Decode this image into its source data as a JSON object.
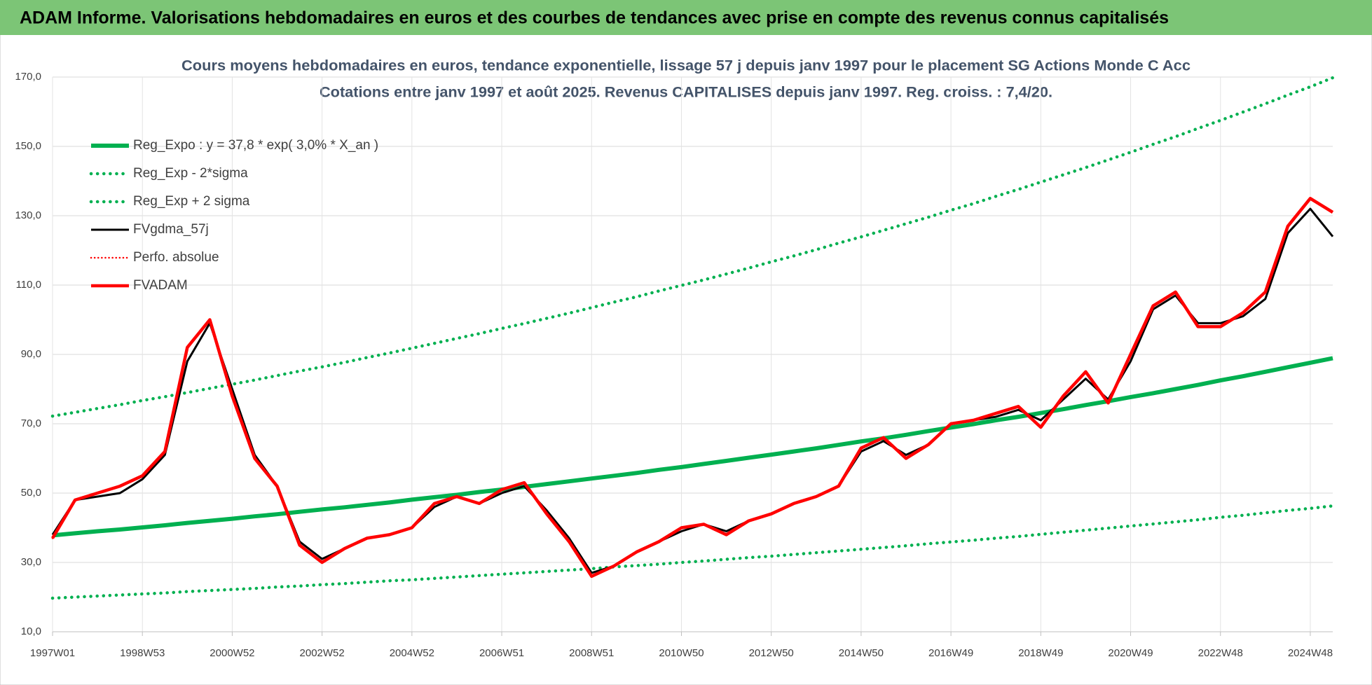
{
  "header": "ADAM Informe. Valorisations hebdomadaires en euros et des courbes de tendances avec prise en compte des revenus connus capitalisés",
  "chart_data": {
    "type": "line",
    "title": "Cours moyens hebdomadaires en euros, tendance exponentielle, lissage 57 j depuis janv 1997 pour le placement SG Actions Monde C Acc",
    "subtitle": "Cotations entre janv 1997 et août 2025. Revenus CAPITALISES depuis janv 1997. Reg. croiss. : 7,4/20.",
    "categories": [
      "1997W01",
      null,
      null,
      null,
      "1998W53",
      null,
      null,
      null,
      "2000W52",
      null,
      null,
      null,
      "2002W52",
      null,
      null,
      null,
      "2004W52",
      null,
      null,
      null,
      "2006W51",
      null,
      null,
      null,
      "2008W51",
      null,
      null,
      null,
      "2010W50",
      null,
      null,
      null,
      "2012W50",
      null,
      null,
      null,
      "2014W50",
      null,
      null,
      null,
      "2016W49",
      null,
      null,
      null,
      "2018W49",
      null,
      null,
      null,
      "2020W49",
      null,
      null,
      null,
      "2022W48",
      null,
      null,
      null,
      "2024W48",
      null
    ],
    "ylim": [
      10,
      170
    ],
    "yticks": [
      {
        "value": 10,
        "label": "10,0"
      },
      {
        "value": 30,
        "label": "30,0"
      },
      {
        "value": 50,
        "label": "50,0"
      },
      {
        "value": 70,
        "label": "70,0"
      },
      {
        "value": 90,
        "label": "90,0"
      },
      {
        "value": 110,
        "label": "110,0"
      },
      {
        "value": 130,
        "label": "130,0"
      },
      {
        "value": 150,
        "label": "150,0"
      },
      {
        "value": 170,
        "label": "170,0"
      }
    ],
    "grid": true,
    "legend": "upper left",
    "series": [
      {
        "name": "Reg_Expo : y = 37,8 * exp( 3,0% *  X_an )",
        "color": "#00b050",
        "style": "solid",
        "values": [
          37.8,
          38.4,
          39.0,
          39.5,
          40.1,
          40.7,
          41.4,
          42.0,
          42.6,
          43.3,
          43.9,
          44.6,
          45.3,
          45.9,
          46.6,
          47.3,
          48.1,
          48.8,
          49.5,
          50.3,
          51.0,
          51.8,
          52.6,
          53.4,
          54.2,
          55.0,
          55.8,
          56.7,
          57.5,
          58.4,
          59.3,
          60.2,
          61.1,
          62.0,
          62.9,
          63.9,
          64.9,
          65.8,
          66.8,
          67.9,
          68.9,
          69.9,
          71.0,
          72.0,
          73.1,
          74.2,
          75.4,
          76.5,
          77.7,
          78.8,
          80.0,
          81.2,
          82.5,
          83.7,
          85.0,
          86.3,
          87.6,
          88.9
        ]
      },
      {
        "name": "Reg_Exp - 2*sigma",
        "color": "#00b050",
        "style": "dotted",
        "values": [
          19.7,
          20.0,
          20.3,
          20.6,
          20.9,
          21.2,
          21.6,
          21.9,
          22.2,
          22.5,
          22.9,
          23.2,
          23.6,
          23.9,
          24.3,
          24.7,
          25.0,
          25.4,
          25.8,
          26.2,
          26.6,
          27.0,
          27.4,
          27.8,
          28.2,
          28.7,
          29.1,
          29.5,
          30.0,
          30.4,
          30.9,
          31.4,
          31.8,
          32.3,
          32.8,
          33.3,
          33.8,
          34.3,
          34.8,
          35.4,
          35.9,
          36.4,
          37.0,
          37.5,
          38.1,
          38.7,
          39.3,
          39.9,
          40.5,
          41.1,
          41.7,
          42.3,
          43.0,
          43.6,
          44.3,
          45.0,
          45.6,
          46.3
        ]
      },
      {
        "name": "Reg_Exp + 2 sigma",
        "color": "#00b050",
        "style": "dotted",
        "values": [
          72.2,
          73.3,
          74.4,
          75.5,
          76.7,
          77.8,
          79.0,
          80.2,
          81.4,
          82.6,
          83.9,
          85.2,
          86.4,
          87.7,
          89.1,
          90.4,
          91.8,
          93.2,
          94.6,
          96.0,
          97.5,
          98.9,
          100.4,
          101.9,
          103.5,
          105.1,
          106.6,
          108.3,
          109.9,
          111.5,
          113.2,
          114.9,
          116.7,
          118.4,
          120.2,
          122.1,
          123.9,
          125.8,
          127.7,
          129.6,
          131.6,
          133.5,
          135.6,
          137.6,
          139.7,
          141.8,
          143.9,
          146.1,
          148.3,
          150.6,
          152.8,
          155.2,
          157.5,
          159.9,
          162.3,
          164.8,
          167.2,
          169.8
        ]
      },
      {
        "name": "FVgdma_57j",
        "color": "#000000",
        "style": "solid",
        "values": [
          38,
          48,
          49,
          50,
          54,
          61,
          88,
          99,
          80,
          61,
          52,
          36,
          31,
          34,
          37,
          38,
          40,
          46,
          49,
          47,
          50,
          52,
          45,
          37,
          27,
          29,
          33,
          36,
          39,
          41,
          39,
          42,
          44,
          47,
          49,
          52,
          62,
          65,
          61,
          64,
          70,
          71,
          72,
          74,
          71,
          77,
          83,
          77,
          88,
          103,
          107,
          99,
          99,
          101,
          106,
          125,
          132,
          124
        ]
      },
      {
        "name": "Perfo. absolue",
        "color": "#ff0000",
        "style": "dotted",
        "values": [
          37,
          48,
          50,
          52,
          55,
          62,
          92,
          100,
          78,
          60,
          52,
          35,
          30,
          34,
          37,
          38,
          40,
          47,
          49,
          47,
          51,
          53,
          44,
          36,
          26,
          29,
          33,
          36,
          40,
          41,
          38,
          42,
          44,
          47,
          49,
          52,
          63,
          66,
          60,
          64,
          70,
          71,
          73,
          75,
          69,
          78,
          85,
          76,
          90,
          104,
          108,
          98,
          98,
          102,
          108,
          127,
          135,
          131
        ]
      },
      {
        "name": "FVADAM",
        "color": "#ff0000",
        "style": "solid",
        "values": [
          37,
          48,
          50,
          52,
          55,
          62,
          92,
          100,
          78,
          60,
          52,
          35,
          30,
          34,
          37,
          38,
          40,
          47,
          49,
          47,
          51,
          53,
          44,
          36,
          26,
          29,
          33,
          36,
          40,
          41,
          38,
          42,
          44,
          47,
          49,
          52,
          63,
          66,
          60,
          64,
          70,
          71,
          73,
          75,
          69,
          78,
          85,
          76,
          90,
          104,
          108,
          98,
          98,
          102,
          108,
          127,
          135,
          131
        ]
      }
    ]
  }
}
